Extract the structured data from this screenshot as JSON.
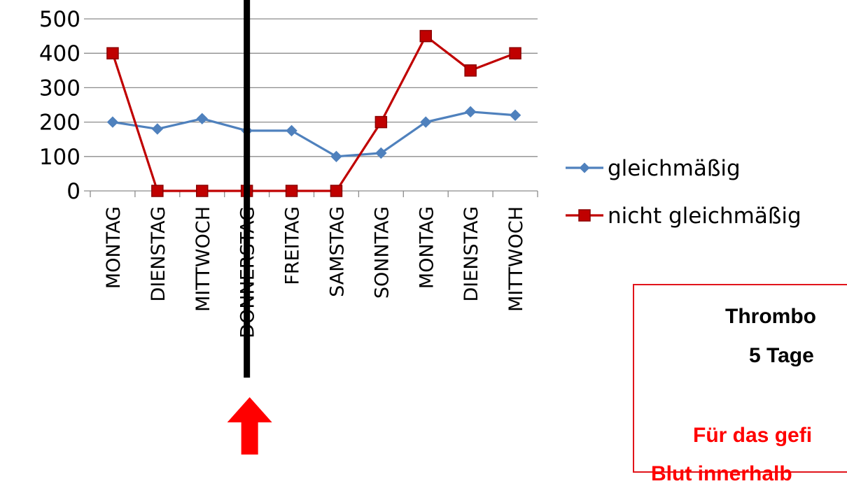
{
  "chart_data": {
    "type": "line",
    "categories": [
      "MONTAG",
      "DIENSTAG",
      "MITTWOCH",
      "DONNERSTAG",
      "FREITAG",
      "SAMSTAG",
      "SONNTAG",
      "MONTAG",
      "DIENSTAG",
      "MITTWOCH"
    ],
    "series": [
      {
        "name": "gleichmäßig",
        "values": [
          200,
          180,
          210,
          175,
          175,
          100,
          110,
          200,
          230,
          220
        ],
        "color": "#4f81bd",
        "marker": "diamond"
      },
      {
        "name": "nicht gleichmäßig",
        "values": [
          400,
          0,
          0,
          0,
          0,
          0,
          200,
          450,
          350,
          400
        ],
        "color": "#c00000",
        "marker": "square"
      }
    ],
    "ylim": [
      0,
      500
    ],
    "yticks": [
      0,
      100,
      200,
      300,
      400,
      500
    ],
    "grid": true,
    "legend": "right",
    "highlight_category": 3,
    "highlight_line_color": "#000000",
    "arrow_color": "#ff0000"
  },
  "info_box": {
    "line1": "Thrombo",
    "line2": "5 Tage",
    "line3": "Für das gefi",
    "line4": "Blut innerhalb"
  }
}
